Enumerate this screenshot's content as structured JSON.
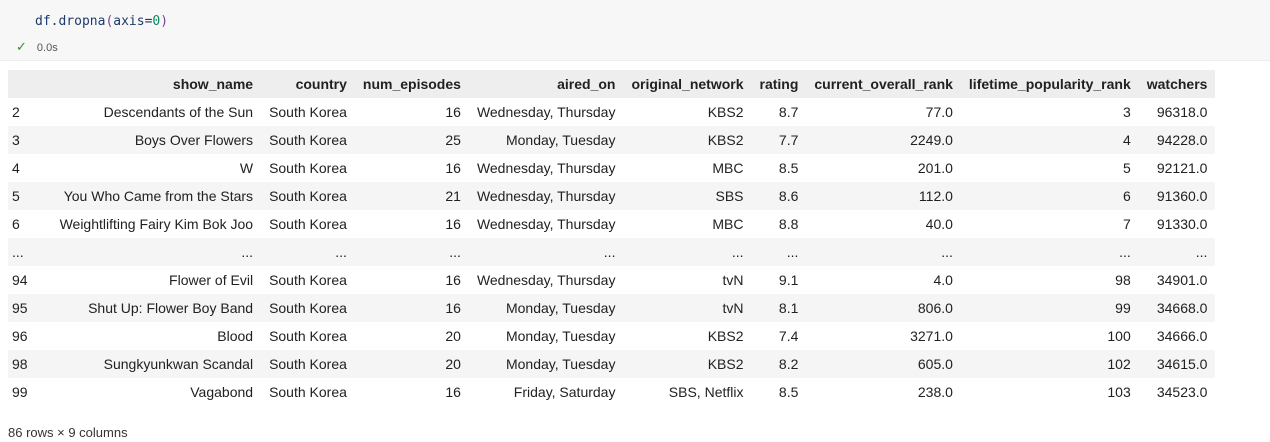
{
  "cell": {
    "code": {
      "prefix": "df.dropna",
      "open_paren": "(",
      "arg_name": "axis=",
      "arg_value": "0",
      "close_paren": ")"
    },
    "status": {
      "check_symbol": "✓",
      "duration": "0.0s"
    }
  },
  "table": {
    "columns": [
      "",
      "show_name",
      "country",
      "num_episodes",
      "aired_on",
      "original_network",
      "rating",
      "current_overall_rank",
      "lifetime_popularity_rank",
      "watchers"
    ],
    "rows": [
      [
        "2",
        "Descendants of the Sun",
        "South Korea",
        "16",
        "Wednesday, Thursday",
        "KBS2",
        "8.7",
        "77.0",
        "3",
        "96318.0"
      ],
      [
        "3",
        "Boys Over Flowers",
        "South Korea",
        "25",
        "Monday, Tuesday",
        "KBS2",
        "7.7",
        "2249.0",
        "4",
        "94228.0"
      ],
      [
        "4",
        "W",
        "South Korea",
        "16",
        "Wednesday, Thursday",
        "MBC",
        "8.5",
        "201.0",
        "5",
        "92121.0"
      ],
      [
        "5",
        "You Who Came from the Stars",
        "South Korea",
        "21",
        "Wednesday, Thursday",
        "SBS",
        "8.6",
        "112.0",
        "6",
        "91360.0"
      ],
      [
        "6",
        "Weightlifting Fairy Kim Bok Joo",
        "South Korea",
        "16",
        "Wednesday, Thursday",
        "MBC",
        "8.8",
        "40.0",
        "7",
        "91330.0"
      ],
      [
        "...",
        "...",
        "...",
        "...",
        "...",
        "...",
        "...",
        "...",
        "...",
        "..."
      ],
      [
        "94",
        "Flower of Evil",
        "South Korea",
        "16",
        "Wednesday, Thursday",
        "tvN",
        "9.1",
        "4.0",
        "98",
        "34901.0"
      ],
      [
        "95",
        "Shut Up: Flower Boy Band",
        "South Korea",
        "16",
        "Monday, Tuesday",
        "tvN",
        "8.1",
        "806.0",
        "99",
        "34668.0"
      ],
      [
        "96",
        "Blood",
        "South Korea",
        "20",
        "Monday, Tuesday",
        "KBS2",
        "7.4",
        "3271.0",
        "100",
        "34666.0"
      ],
      [
        "98",
        "Sungkyunkwan Scandal",
        "South Korea",
        "20",
        "Monday, Tuesday",
        "KBS2",
        "8.2",
        "605.0",
        "102",
        "34615.0"
      ],
      [
        "99",
        "Vagabond",
        "South Korea",
        "16",
        "Friday, Saturday",
        "SBS, Netflix",
        "8.5",
        "238.0",
        "103",
        "34523.0"
      ]
    ]
  },
  "shape_note": "86 rows × 9 columns"
}
